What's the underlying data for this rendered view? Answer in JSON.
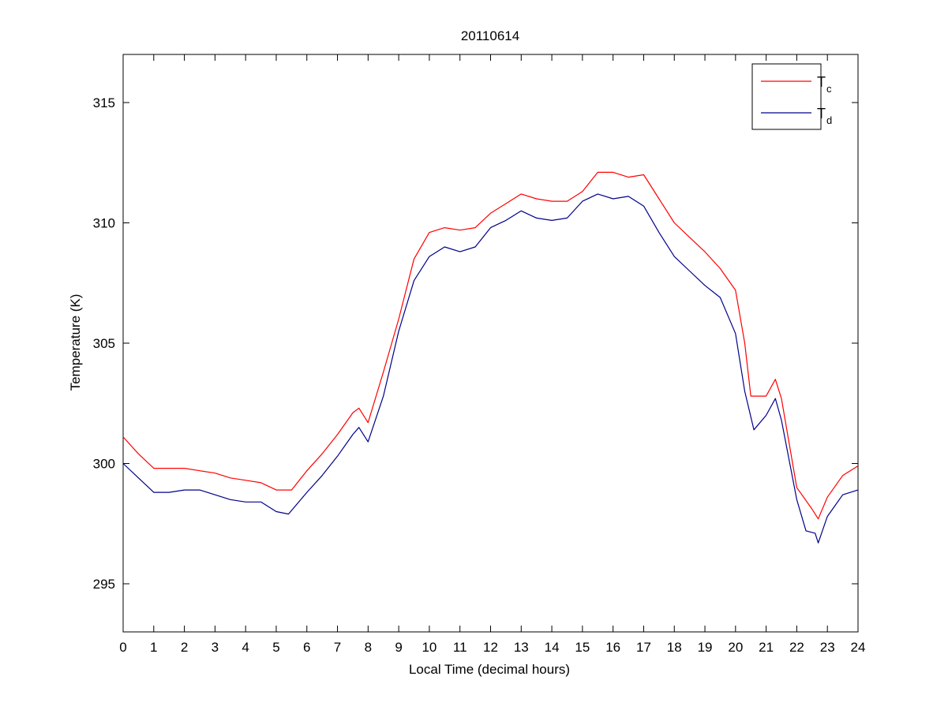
{
  "chart_data": {
    "type": "line",
    "title": "20110614",
    "xlabel": "Local Time (decimal hours)",
    "ylabel": "Temperature (K)",
    "xlim": [
      0,
      24
    ],
    "ylim": [
      293,
      317
    ],
    "xticks": [
      0,
      1,
      2,
      3,
      4,
      5,
      6,
      7,
      8,
      9,
      10,
      11,
      12,
      13,
      14,
      15,
      16,
      17,
      18,
      19,
      20,
      21,
      22,
      23,
      24
    ],
    "yticks": [
      295,
      300,
      305,
      310,
      315
    ],
    "grid": false,
    "legend_position": "top-right",
    "series": [
      {
        "name": "Tc",
        "legend_main": "T",
        "legend_sub": "c",
        "color": "#ff0000",
        "x": [
          0,
          0.5,
          1,
          1.5,
          2,
          2.5,
          3,
          3.5,
          4,
          4.5,
          5,
          5.5,
          6,
          6.5,
          7,
          7.5,
          7.7,
          8,
          8.5,
          9,
          9.5,
          10,
          10.5,
          11,
          11.5,
          12,
          12.5,
          13,
          13.5,
          14,
          14.5,
          15,
          15.5,
          16,
          16.5,
          17,
          17.5,
          18,
          18.5,
          19,
          19.5,
          20,
          20.3,
          20.5,
          21,
          21.3,
          21.5,
          22,
          22.5,
          22.7,
          23,
          23.5,
          24
        ],
        "y": [
          301.1,
          300.4,
          299.8,
          299.8,
          299.8,
          299.7,
          299.6,
          299.4,
          299.3,
          299.2,
          298.9,
          298.9,
          299.7,
          300.4,
          301.2,
          302.1,
          302.3,
          301.7,
          303.8,
          306.0,
          308.5,
          309.6,
          309.8,
          309.7,
          309.8,
          310.4,
          310.8,
          311.2,
          311.0,
          310.9,
          310.9,
          311.3,
          312.1,
          312.1,
          311.9,
          312.0,
          311.0,
          310.0,
          309.4,
          308.8,
          308.1,
          307.2,
          305.0,
          302.8,
          302.8,
          303.5,
          302.7,
          299.0,
          298.1,
          297.7,
          298.6,
          299.5,
          299.9
        ]
      },
      {
        "name": "Td",
        "legend_main": "T",
        "legend_sub": "d",
        "color": "#00008b",
        "x": [
          0,
          0.5,
          1,
          1.5,
          2,
          2.5,
          3,
          3.5,
          4,
          4.5,
          5,
          5.4,
          6,
          6.5,
          7,
          7.5,
          7.7,
          8,
          8.5,
          9,
          9.5,
          10,
          10.5,
          11,
          11.5,
          12,
          12.5,
          13,
          13.5,
          14,
          14.5,
          15,
          15.5,
          16,
          16.5,
          17,
          17.5,
          18,
          18.5,
          19,
          19.5,
          20,
          20.3,
          20.6,
          21,
          21.3,
          21.5,
          22,
          22.3,
          22.6,
          22.7,
          23,
          23.5,
          24
        ],
        "y": [
          300.0,
          299.4,
          298.8,
          298.8,
          298.9,
          298.9,
          298.7,
          298.5,
          298.4,
          298.4,
          298.0,
          297.9,
          298.8,
          299.5,
          300.3,
          301.2,
          301.5,
          300.9,
          302.8,
          305.5,
          307.6,
          308.6,
          309.0,
          308.8,
          309.0,
          309.8,
          310.1,
          310.5,
          310.2,
          310.1,
          310.2,
          310.9,
          311.2,
          311.0,
          311.1,
          310.7,
          309.6,
          308.6,
          308.0,
          307.4,
          306.9,
          305.4,
          303.0,
          301.4,
          302.0,
          302.7,
          301.8,
          298.5,
          297.2,
          297.1,
          296.7,
          297.8,
          298.7,
          298.9
        ]
      }
    ]
  }
}
